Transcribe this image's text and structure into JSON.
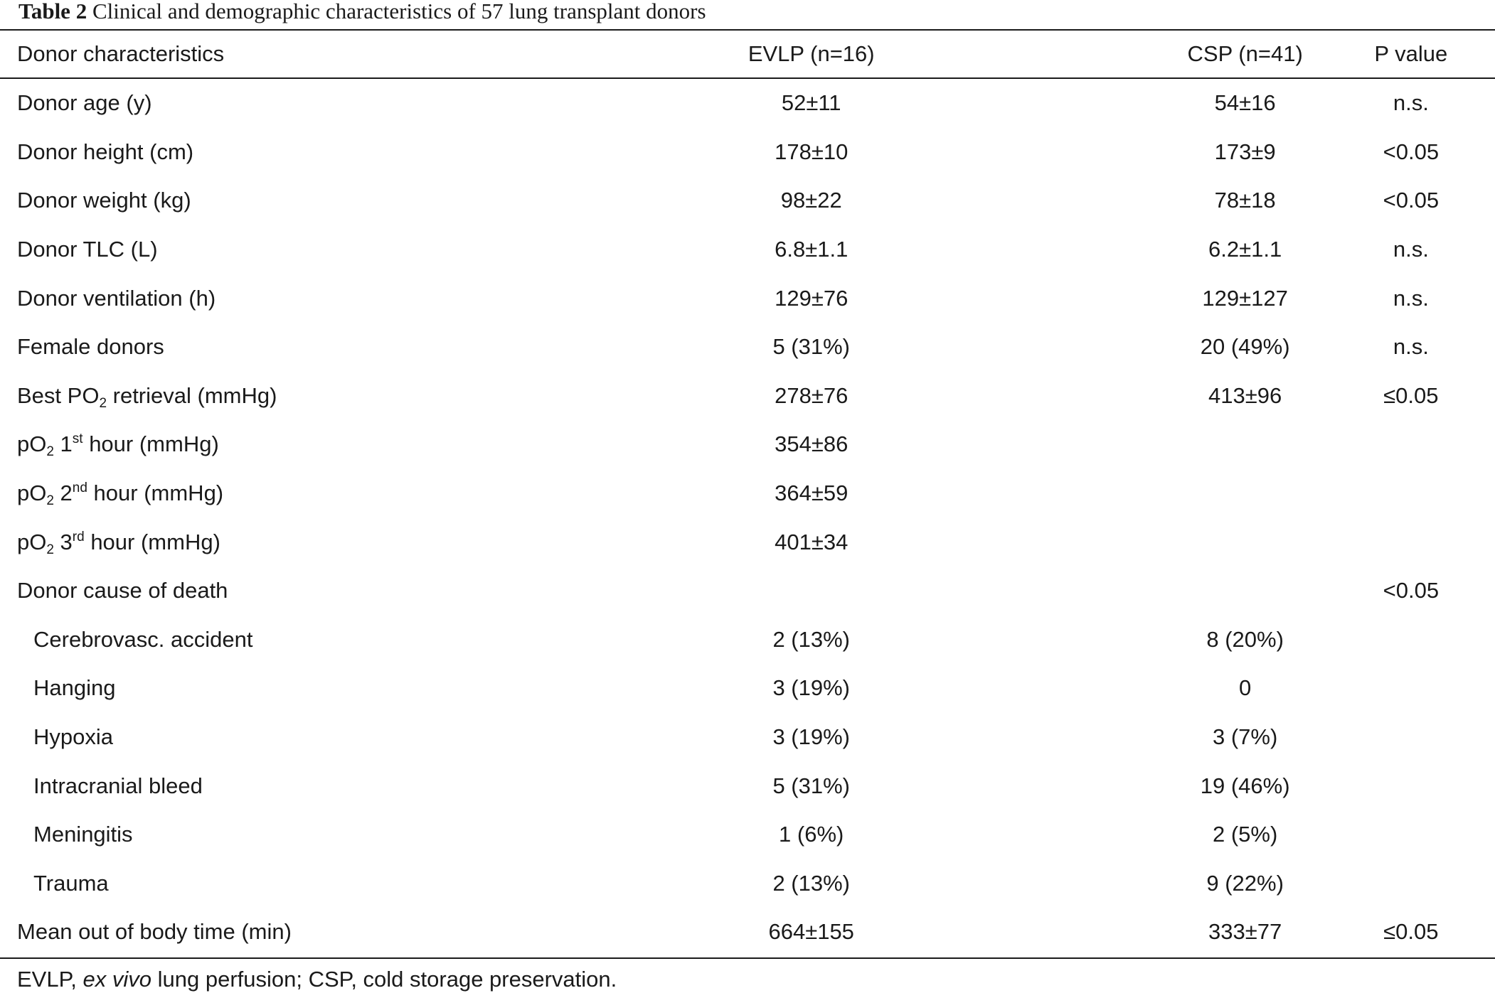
{
  "caption": {
    "label": "Table 2",
    "text": "Clinical and demographic characteristics of 57 lung transplant donors"
  },
  "table": {
    "headers": [
      "Donor characteristics",
      "EVLP (n=16)",
      "CSP (n=41)",
      "P value"
    ],
    "rows": [
      {
        "label": "Donor age (y)",
        "evlp": "52±11",
        "csp": "54±16",
        "p": "n.s."
      },
      {
        "label": "Donor height (cm)",
        "evlp": "178±10",
        "csp": "173±9",
        "p": "<0.05"
      },
      {
        "label": "Donor weight (kg)",
        "evlp": "98±22",
        "csp": "78±18",
        "p": "<0.05"
      },
      {
        "label": "Donor TLC (L)",
        "evlp": "6.8±1.1",
        "csp": "6.2±1.1",
        "p": "n.s."
      },
      {
        "label": "Donor ventilation (h)",
        "evlp": "129±76",
        "csp": "129±127",
        "p": "n.s."
      },
      {
        "label": "Female donors",
        "evlp": "5 (31%)",
        "csp": "20 (49%)",
        "p": "n.s."
      },
      {
        "label_pre": "Best PO",
        "label_sub": "2",
        "label_post": " retrieval (mmHg)",
        "evlp": "278±76",
        "csp": "413±96",
        "p": "≤0.05"
      },
      {
        "label_pre": "pO",
        "label_sub": "2",
        "label_mid": " 1",
        "label_sup": "st",
        "label_post": " hour (mmHg)",
        "evlp": "354±86",
        "csp": "",
        "p": ""
      },
      {
        "label_pre": "pO",
        "label_sub": "2",
        "label_mid": " 2",
        "label_sup": "nd",
        "label_post": " hour (mmHg)",
        "evlp": "364±59",
        "csp": "",
        "p": ""
      },
      {
        "label_pre": "pO",
        "label_sub": "2",
        "label_mid": " 3",
        "label_sup": "rd",
        "label_post": " hour (mmHg)",
        "evlp": "401±34",
        "csp": "",
        "p": ""
      },
      {
        "label": "Donor cause of death",
        "evlp": "",
        "csp": "",
        "p": "<0.05"
      },
      {
        "label": "Cerebrovasc. accident",
        "evlp": "2 (13%)",
        "csp": "8 (20%)",
        "p": "",
        "indent": true
      },
      {
        "label": "Hanging",
        "evlp": "3 (19%)",
        "csp": "0",
        "p": "",
        "indent": true
      },
      {
        "label": "Hypoxia",
        "evlp": "3 (19%)",
        "csp": "3 (7%)",
        "p": "",
        "indent": true
      },
      {
        "label": "Intracranial bleed",
        "evlp": "5 (31%)",
        "csp": "19 (46%)",
        "p": "",
        "indent": true
      },
      {
        "label": "Meningitis",
        "evlp": "1 (6%)",
        "csp": "2 (5%)",
        "p": "",
        "indent": true
      },
      {
        "label": "Trauma",
        "evlp": "2 (13%)",
        "csp": "9 (22%)",
        "p": "",
        "indent": true
      },
      {
        "label": "Mean out of body time (min)",
        "evlp": "664±155",
        "csp": "333±77",
        "p": "≤0.05"
      }
    ]
  },
  "footnote": {
    "part1": "EVLP, ",
    "italic": "ex vivo",
    "part2": " lung perfusion; CSP, cold storage preservation."
  }
}
